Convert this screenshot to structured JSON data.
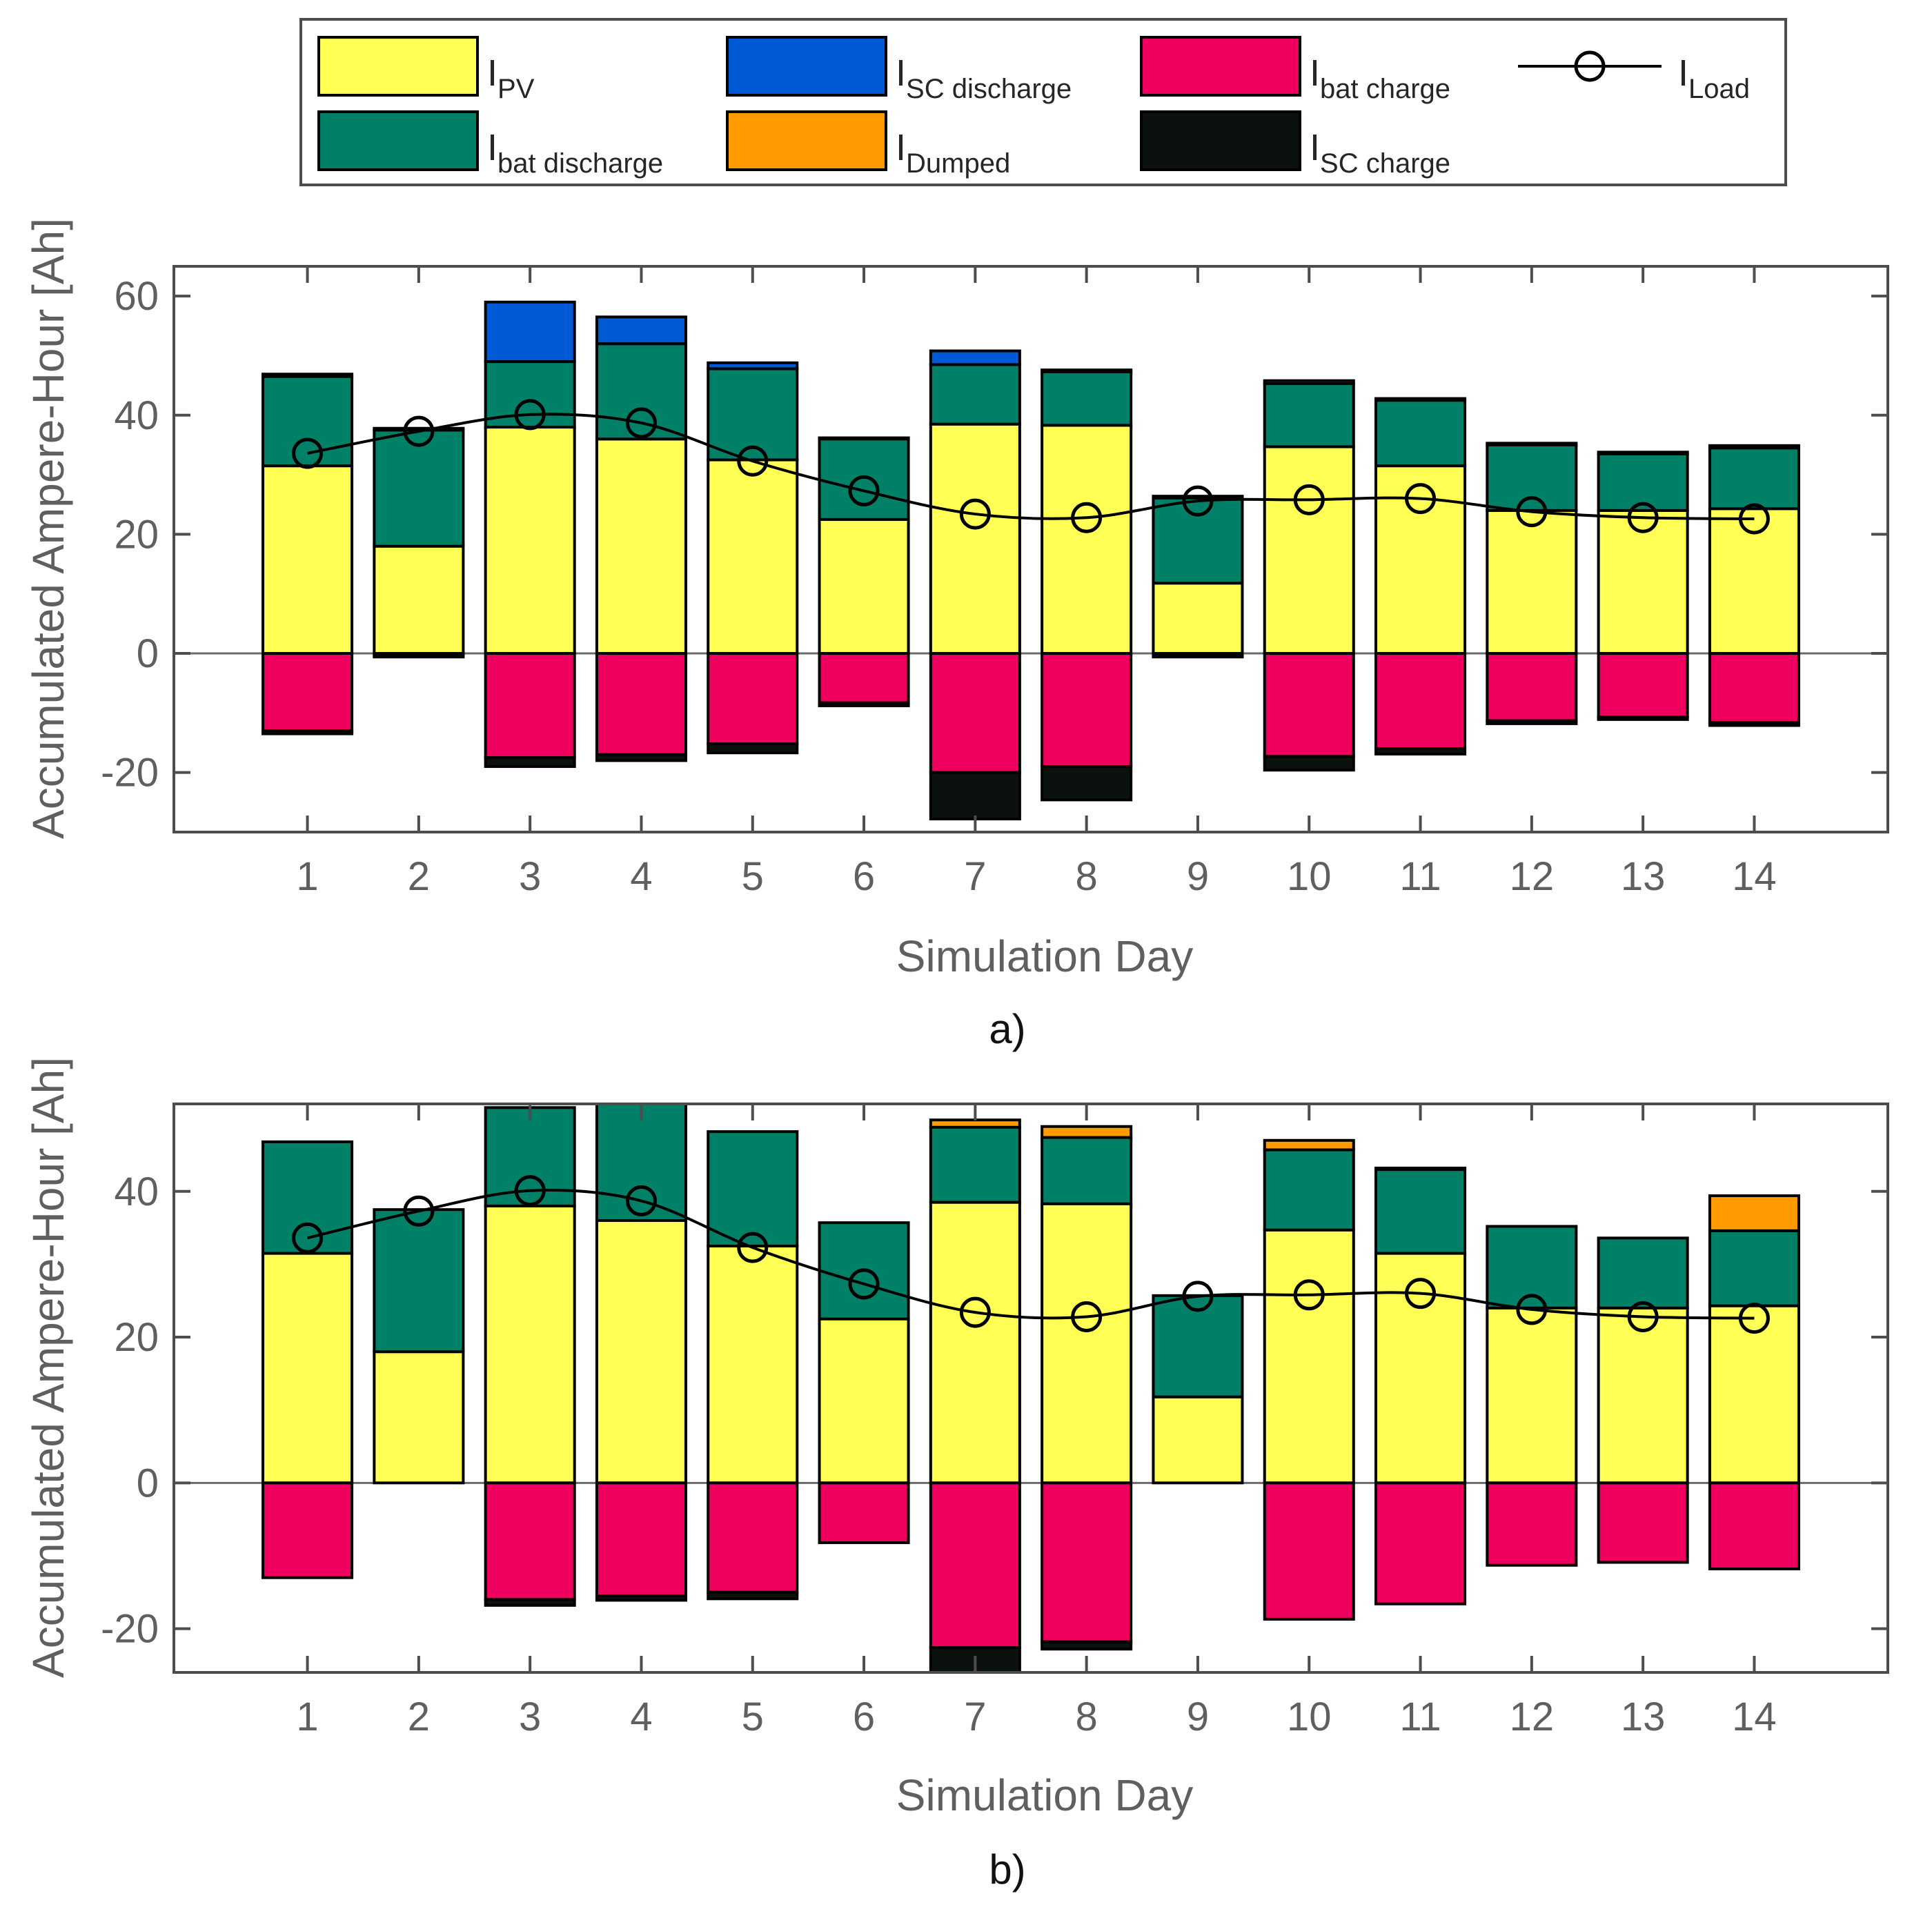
{
  "colors": {
    "pv": "#ffff55",
    "bat_discharge": "#008066",
    "sc_discharge": "#005ad6",
    "dumped": "#ff9a00",
    "bat_charge": "#f0005e",
    "sc_charge": "#0b120d",
    "line": "#000000",
    "axis": "#4d4d4d",
    "tick_text": "#5f5f5f"
  },
  "legend": [
    {
      "key": "pv",
      "main": "I",
      "sub": "PV",
      "kind": "bar"
    },
    {
      "key": "sc_discharge",
      "main": "I",
      "sub": "SC discharge",
      "kind": "bar"
    },
    {
      "key": "bat_charge",
      "main": "I",
      "sub": "bat charge",
      "kind": "bar"
    },
    {
      "key": "load",
      "main": "I",
      "sub": "Load",
      "kind": "line"
    },
    {
      "key": "bat_discharge",
      "main": "I",
      "sub": "bat discharge",
      "kind": "bar"
    },
    {
      "key": "dumped",
      "main": "I",
      "sub": "Dumped",
      "kind": "bar"
    },
    {
      "key": "sc_charge",
      "main": "I",
      "sub": "SC charge",
      "kind": "bar"
    }
  ],
  "chart_data": [
    {
      "type": "bar",
      "id": "a",
      "caption": "a)",
      "xlabel": "Simulation Day",
      "ylabel": "Accumulated Ampere-Hour [Ah]",
      "categories": [
        "1",
        "2",
        "3",
        "4",
        "5",
        "6",
        "7",
        "8",
        "9",
        "10",
        "11",
        "12",
        "13",
        "14"
      ],
      "ylim": [
        -30,
        65
      ],
      "yticks": [
        "-20",
        "0",
        "20",
        "40",
        "60"
      ],
      "stacked_positive": [
        "pv",
        "bat_discharge",
        "dumped",
        "sc_discharge"
      ],
      "stacked_negative": [
        "bat_charge",
        "sc_charge"
      ],
      "series": {
        "pv": [
          31.5,
          18.0,
          38.0,
          36.0,
          32.5,
          22.5,
          38.5,
          38.3,
          11.8,
          34.7,
          31.5,
          24.0,
          24.0,
          24.3
        ],
        "bat_discharge": [
          15.0,
          19.5,
          11.0,
          16.0,
          15.3,
          13.5,
          10.0,
          9.0,
          14.3,
          10.6,
          11.0,
          11.0,
          9.5,
          10.2
        ],
        "dumped": [
          0,
          0,
          0,
          0,
          0,
          0,
          0,
          0,
          0,
          0,
          0,
          0,
          0,
          0
        ],
        "sc_discharge": [
          0.4,
          0.3,
          10.0,
          4.5,
          1.0,
          0.2,
          2.3,
          0.3,
          0.3,
          0.5,
          0.3,
          0.3,
          0.3,
          0.4
        ],
        "bat_charge": [
          -13.0,
          -0.3,
          -17.5,
          -17.0,
          -15.2,
          -8.3,
          -20.0,
          -19.0,
          -0.3,
          -17.3,
          -16.0,
          -11.3,
          -10.7,
          -11.6
        ],
        "sc_charge": [
          -0.5,
          -0.3,
          -1.5,
          -1.0,
          -1.5,
          -0.5,
          -7.8,
          -5.6,
          -0.3,
          -2.3,
          -0.9,
          -0.5,
          -0.4,
          -0.5
        ],
        "load": [
          33.6,
          37.3,
          40.1,
          38.7,
          32.3,
          27.3,
          23.4,
          22.8,
          25.6,
          25.8,
          26.0,
          23.8,
          22.8,
          22.6
        ]
      }
    },
    {
      "type": "bar",
      "id": "b",
      "caption": "b)",
      "xlabel": "Simulation Day",
      "ylabel": "Accumulated Ampere-Hour [Ah]",
      "categories": [
        "1",
        "2",
        "3",
        "4",
        "5",
        "6",
        "7",
        "8",
        "9",
        "10",
        "11",
        "12",
        "13",
        "14"
      ],
      "ylim": [
        -26,
        52
      ],
      "yticks": [
        "-20",
        "0",
        "20",
        "40"
      ],
      "stacked_positive": [
        "pv",
        "bat_discharge",
        "dumped",
        "sc_discharge"
      ],
      "stacked_negative": [
        "bat_charge",
        "sc_charge"
      ],
      "series": {
        "pv": [
          31.5,
          18.0,
          38.0,
          36.0,
          32.5,
          22.5,
          38.5,
          38.3,
          11.8,
          34.7,
          31.5,
          24.0,
          24.0,
          24.3
        ],
        "bat_discharge": [
          15.3,
          19.5,
          13.5,
          16.5,
          15.7,
          13.2,
          10.3,
          9.1,
          13.9,
          11.0,
          11.5,
          11.2,
          9.6,
          10.3
        ],
        "dumped": [
          0,
          0,
          0,
          0,
          0,
          0,
          1.0,
          1.5,
          0,
          1.3,
          0.2,
          0,
          0,
          4.8
        ],
        "sc_discharge": [
          0,
          0,
          0,
          0,
          0,
          0,
          0,
          0,
          0,
          0,
          0,
          0,
          0,
          0
        ],
        "bat_charge": [
          -13.0,
          0,
          -16.0,
          -15.5,
          -15.0,
          -8.2,
          -22.6,
          -21.8,
          0,
          -18.7,
          -16.6,
          -11.3,
          -10.9,
          -11.8
        ],
        "sc_charge": [
          0,
          0,
          -0.8,
          -0.6,
          -0.9,
          0,
          -3.8,
          -1.0,
          0,
          0,
          0,
          0,
          0,
          0
        ],
        "load": [
          33.6,
          37.3,
          40.1,
          38.7,
          32.3,
          27.3,
          23.4,
          22.8,
          25.6,
          25.8,
          26.0,
          23.8,
          22.8,
          22.6
        ]
      }
    }
  ]
}
